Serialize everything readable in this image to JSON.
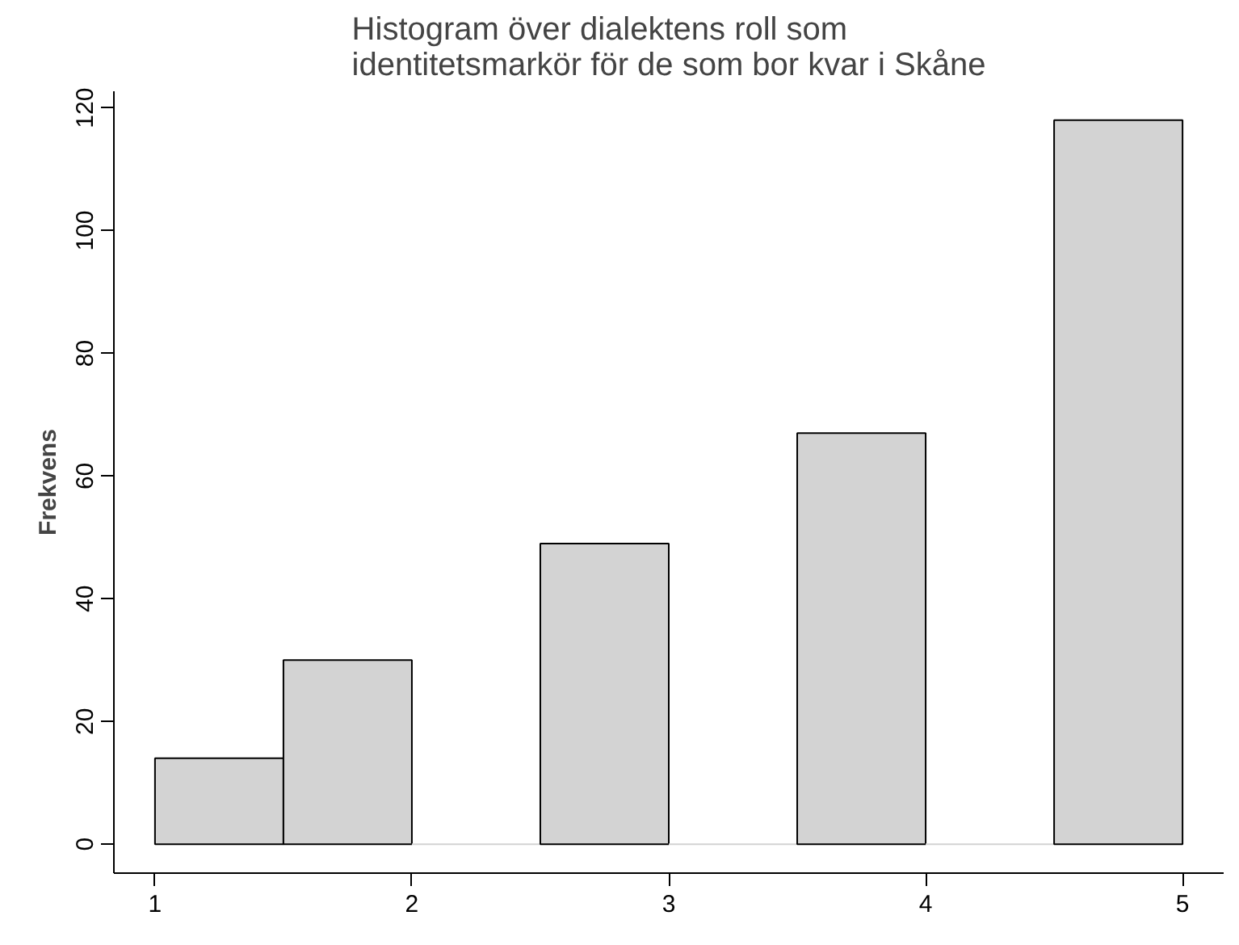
{
  "chart_data": {
    "type": "histogram",
    "title": "Histogram över dialektens roll som\nidentitetsmarkör för de som bor kvar i Skåne",
    "ylabel": "Frekvens",
    "bins": [
      1,
      1.5,
      2,
      2.5,
      3,
      3.5,
      4,
      4.5,
      5
    ],
    "values": [
      14,
      30,
      0,
      49,
      0,
      67,
      0,
      118
    ],
    "color": "#d3d3d3",
    "xlim": [
      0.84,
      5.16
    ],
    "ylim": [
      -4.72,
      122.72
    ],
    "xticks": [
      1,
      2,
      3,
      4,
      5
    ],
    "yticks": [
      0,
      20,
      40,
      60,
      80,
      100,
      120
    ],
    "grid": false
  }
}
